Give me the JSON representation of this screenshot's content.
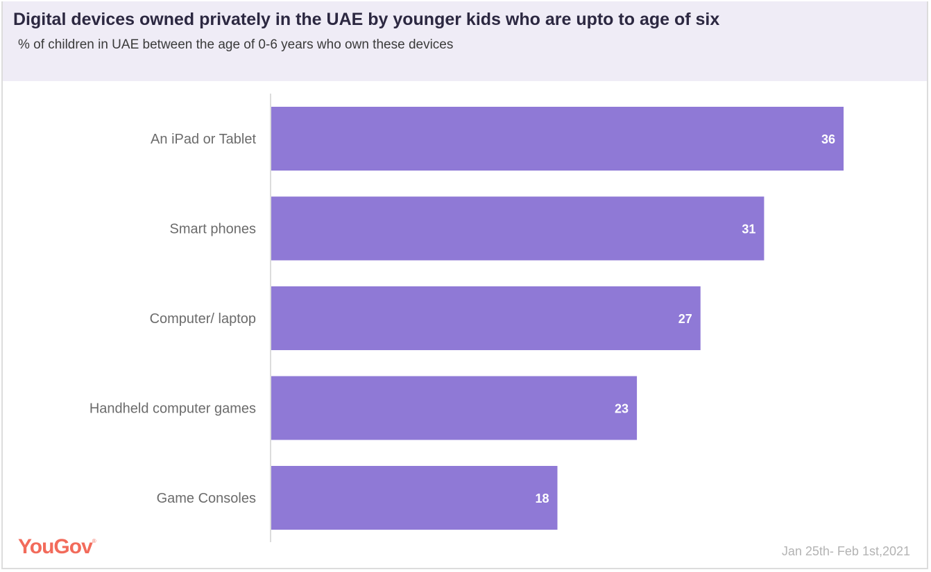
{
  "colors": {
    "bar": "#8f79d6",
    "axis": "#dcdcdc",
    "header_bg": "#efecf6",
    "logo": "#f26b5b"
  },
  "brand": {
    "logo_text": "YouGov",
    "registered_mark": "®"
  },
  "footnote": "Jan 25th- Feb 1st,2021",
  "chart_data": {
    "type": "bar",
    "orientation": "horizontal",
    "title": "Digital devices owned privately in the UAE by younger kids who are upto to age of six",
    "subtitle": "% of children in UAE between the age of 0-6 years who own these devices",
    "categories": [
      "An iPad or Tablet",
      "Smart phones",
      "Computer/ laptop",
      "Handheld computer games",
      "Game Consoles"
    ],
    "values": [
      36,
      31,
      27,
      23,
      18
    ],
    "xlabel": "",
    "ylabel": "",
    "xlim": [
      0,
      36
    ],
    "grid": false,
    "legend": "none",
    "unit": "%"
  }
}
